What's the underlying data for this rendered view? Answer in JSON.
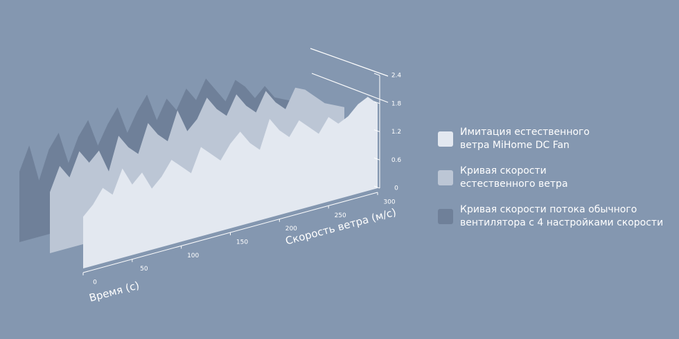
{
  "chart_data": {
    "type": "area3d",
    "x_label": "Время (с)",
    "y_label": "Скорость ветра (м/с)",
    "x": [
      0,
      10,
      20,
      30,
      40,
      50,
      60,
      70,
      80,
      90,
      100,
      110,
      120,
      130,
      140,
      150,
      160,
      170,
      180,
      190,
      200,
      210,
      220,
      230,
      240,
      250,
      260,
      270,
      280,
      290,
      300
    ],
    "xlim": [
      0,
      300
    ],
    "xticks": [
      0,
      50,
      100,
      150,
      200,
      250,
      300
    ],
    "ylim": [
      0,
      2.4
    ],
    "yticks": [
      0,
      0.6,
      1.2,
      1.8,
      2.4
    ],
    "series": [
      {
        "name": "Имитация естественного\nветра MiHome DC Fan",
        "color": "#e3e8f0",
        "values": [
          1.1,
          1.3,
          1.6,
          1.4,
          1.9,
          1.5,
          1.7,
          1.3,
          1.5,
          1.8,
          1.6,
          1.4,
          1.9,
          1.7,
          1.5,
          1.8,
          2.0,
          1.7,
          1.5,
          2.1,
          1.8,
          1.6,
          1.9,
          1.7,
          1.5,
          1.8,
          1.6,
          1.7,
          1.9,
          2.0,
          1.8
        ]
      },
      {
        "name": "Кривая скорости\nестественного ветра",
        "color": "#bcc6d5",
        "values": [
          1.3,
          1.8,
          1.5,
          2.0,
          1.7,
          1.9,
          1.4,
          2.1,
          1.8,
          1.6,
          2.2,
          1.9,
          1.7,
          2.3,
          1.8,
          2.0,
          2.4,
          2.1,
          1.9,
          2.3,
          2.0,
          1.8,
          2.2,
          1.9,
          1.7,
          2.1,
          2.0,
          1.8,
          1.6,
          1.5,
          1.4
        ]
      },
      {
        "name": "Кривая скорости потока обычного\nвентилятора с 4 настройками скорости",
        "color": "#6f8099",
        "values": [
          1.5,
          2.0,
          1.2,
          1.8,
          2.1,
          1.4,
          1.9,
          2.2,
          1.6,
          2.0,
          2.3,
          1.7,
          2.1,
          2.4,
          1.8,
          2.2,
          1.9,
          2.3,
          2.0,
          2.4,
          2.1,
          1.8,
          2.2,
          2.0,
          1.7,
          1.9,
          1.6,
          1.5,
          1.4,
          1.3,
          1.2
        ]
      }
    ]
  }
}
